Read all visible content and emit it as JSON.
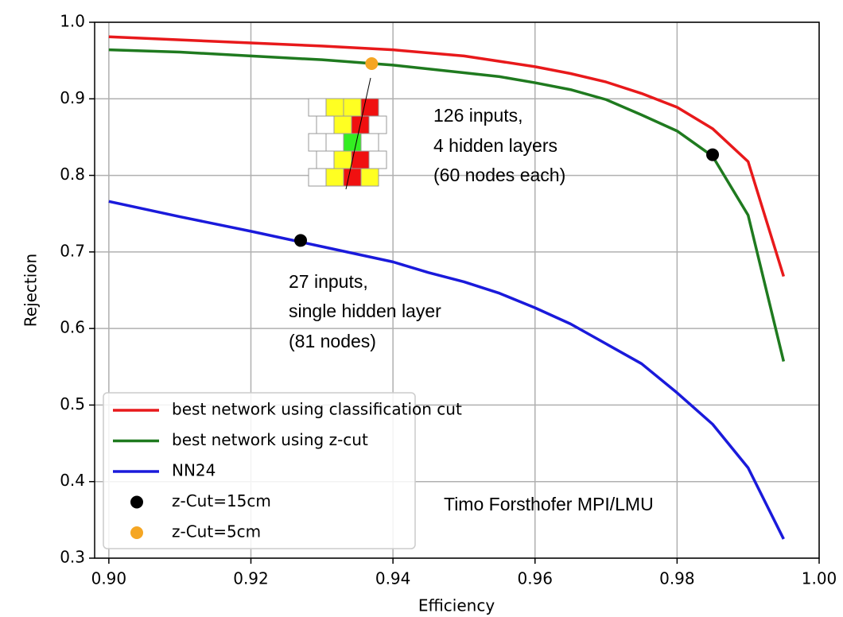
{
  "chart_data": {
    "type": "line",
    "x_label": "Efficiency",
    "y_label": "Rejection",
    "xlim": [
      0.898,
      1.0
    ],
    "ylim": [
      0.3,
      1.0
    ],
    "xticks": [
      {
        "value": 0.9,
        "label": "0.90"
      },
      {
        "value": 0.92,
        "label": "0.92"
      },
      {
        "value": 0.94,
        "label": "0.94"
      },
      {
        "value": 0.96,
        "label": "0.96"
      },
      {
        "value": 0.98,
        "label": "0.98"
      },
      {
        "value": 1.0,
        "label": "1.00"
      }
    ],
    "yticks": [
      0.3,
      0.4,
      0.5,
      0.6,
      0.7,
      0.8,
      0.9,
      {
        "value": 1.0,
        "label": "1.0"
      }
    ],
    "grid": true,
    "legend": "lower left",
    "series": [
      {
        "name": "best network using classification cut",
        "color": "#e8191b",
        "mode": "line",
        "x": [
          0.9,
          0.91,
          0.92,
          0.93,
          0.94,
          0.95,
          0.96,
          0.965,
          0.97,
          0.975,
          0.98,
          0.985,
          0.99,
          0.995
        ],
        "values": [
          0.981,
          0.977,
          0.973,
          0.969,
          0.964,
          0.956,
          0.942,
          0.933,
          0.922,
          0.907,
          0.889,
          0.861,
          0.818,
          0.668
        ]
      },
      {
        "name": "best network using z-cut",
        "color": "#1f7a1f",
        "mode": "line",
        "x": [
          0.9,
          0.91,
          0.92,
          0.93,
          0.94,
          0.95,
          0.955,
          0.96,
          0.965,
          0.97,
          0.975,
          0.98,
          0.985,
          0.99,
          0.995
        ],
        "values": [
          0.964,
          0.961,
          0.956,
          0.951,
          0.944,
          0.934,
          0.929,
          0.921,
          0.912,
          0.899,
          0.879,
          0.858,
          0.825,
          0.748,
          0.557
        ]
      },
      {
        "name": "NN24",
        "color": "#1a1adb",
        "mode": "line",
        "x": [
          0.9,
          0.91,
          0.92,
          0.93,
          0.94,
          0.945,
          0.95,
          0.955,
          0.96,
          0.965,
          0.97,
          0.975,
          0.98,
          0.985,
          0.99,
          0.995
        ],
        "values": [
          0.766,
          0.746,
          0.727,
          0.707,
          0.687,
          0.673,
          0.661,
          0.646,
          0.627,
          0.606,
          0.58,
          0.554,
          0.516,
          0.475,
          0.418,
          0.325
        ]
      },
      {
        "name": "z-Cut=15cm",
        "color": "#000000",
        "mode": "markers",
        "x": [
          0.927,
          0.985
        ],
        "values": [
          0.715,
          0.827
        ]
      },
      {
        "name": "z-Cut=5cm",
        "color": "#f5a623",
        "mode": "markers",
        "x": [
          0.937
        ],
        "values": [
          0.946
        ]
      }
    ],
    "annotations": [
      "126 inputs,",
      "4 hidden layers",
      "(60 nodes each)",
      "27 inputs,",
      "single hidden layer",
      "(81 nodes)",
      "Timo Forsthofer MPI/LMU"
    ]
  }
}
